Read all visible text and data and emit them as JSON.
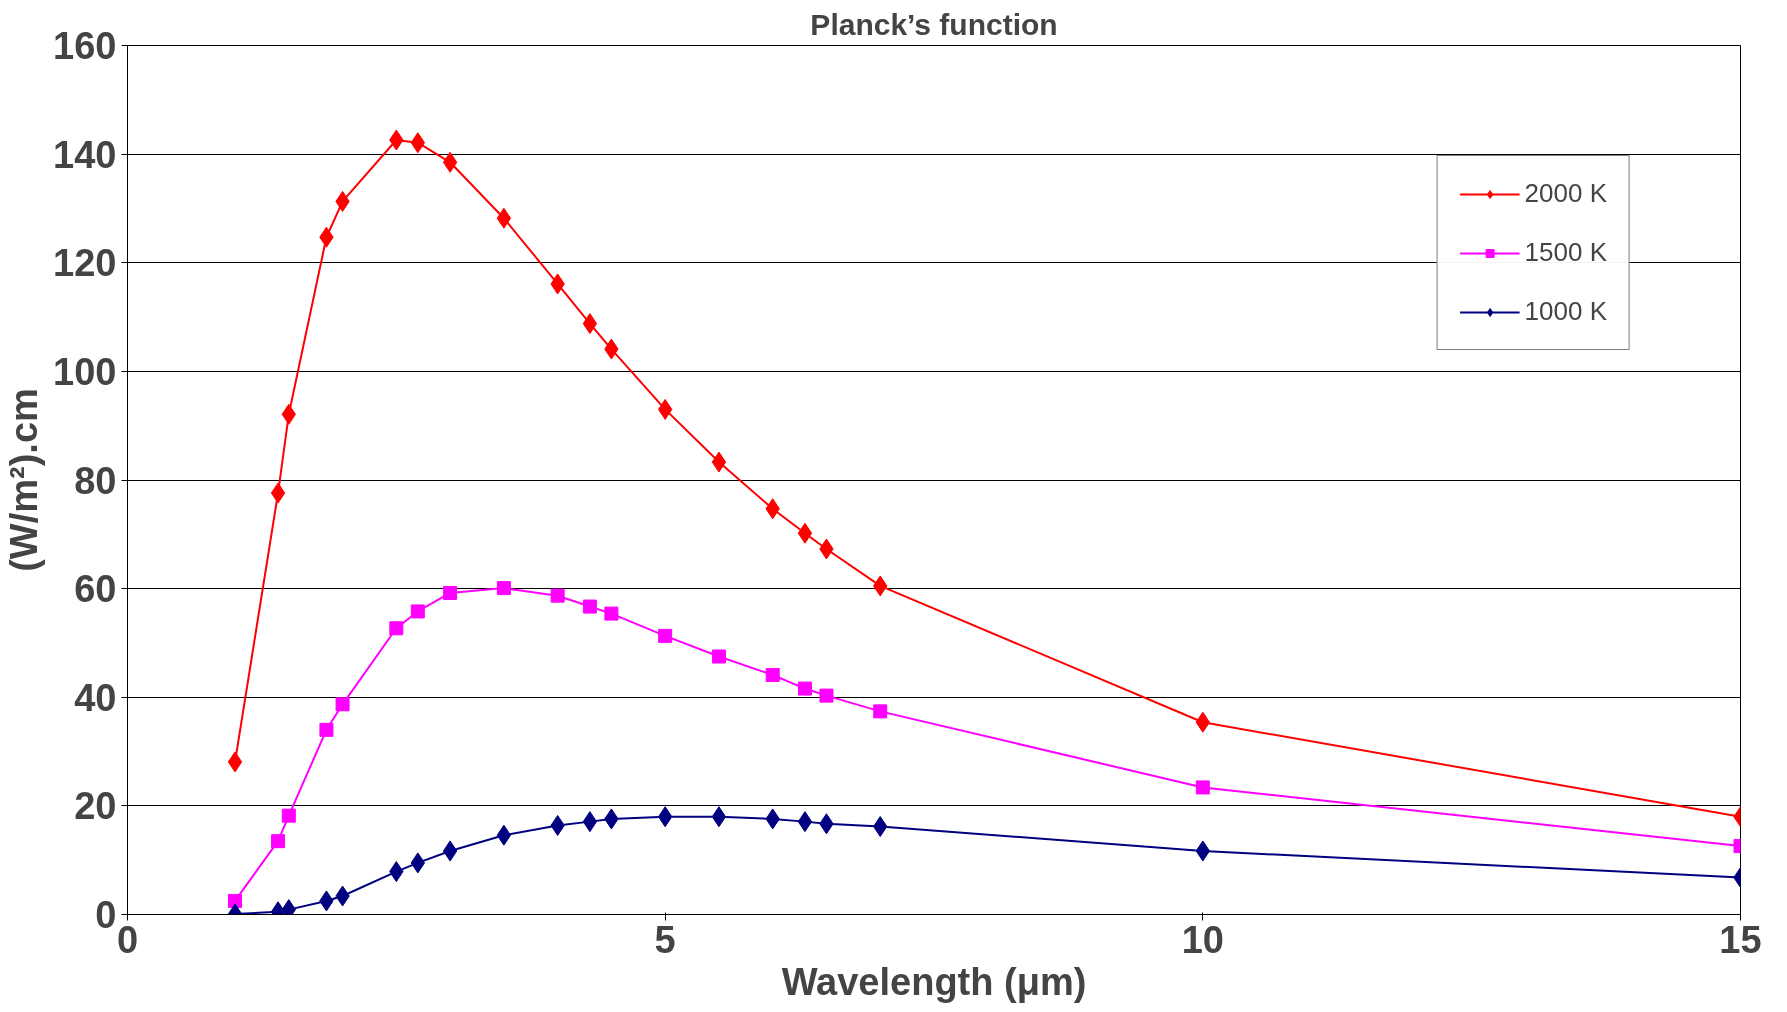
{
  "chart_data": {
    "type": "line",
    "title": "Planck’s function",
    "xlabel": "Wavelength (μm)",
    "ylabel": "(W/m²).cm",
    "x": [
      1.0,
      1.4,
      1.5,
      1.85,
      2.0,
      2.5,
      2.7,
      3.0,
      3.5,
      4.0,
      4.3,
      4.5,
      5.0,
      5.5,
      6.0,
      6.3,
      6.5,
      7.0,
      10.0,
      15.0
    ],
    "series": [
      {
        "name": "2000 K",
        "color": "#ff0000",
        "marker": "diamond",
        "values": [
          28.1,
          77.6,
          92.1,
          124.7,
          131.3,
          142.6,
          142.1,
          138.5,
          128.2,
          116.1,
          108.8,
          104.1,
          93.0,
          83.3,
          74.7,
          70.2,
          67.3,
          60.5,
          35.4,
          18.0
        ]
      },
      {
        "name": "1500 K",
        "color": "#ff00ff",
        "marker": "square",
        "values": [
          2.5,
          13.5,
          18.2,
          34.0,
          38.7,
          52.7,
          55.8,
          59.2,
          60.1,
          58.7,
          56.7,
          55.4,
          51.3,
          47.5,
          44.1,
          41.6,
          40.3,
          37.4,
          23.4,
          12.6
        ]
      },
      {
        "name": "1000 K",
        "color": "#000080",
        "marker": "diamond",
        "values": [
          0.1,
          0.5,
          0.9,
          2.5,
          3.4,
          7.9,
          9.5,
          11.7,
          14.6,
          16.4,
          17.1,
          17.6,
          18.0,
          18.0,
          17.6,
          17.1,
          16.7,
          16.2,
          11.7,
          6.8
        ]
      }
    ],
    "xlim": [
      0,
      15
    ],
    "xticks": [
      0,
      5,
      10,
      15
    ],
    "ylim": [
      0,
      160
    ],
    "yticks": [
      0,
      20,
      40,
      60,
      80,
      100,
      120,
      140,
      160
    ],
    "grid": "y",
    "legend": "top right",
    "line_style": "solid"
  }
}
